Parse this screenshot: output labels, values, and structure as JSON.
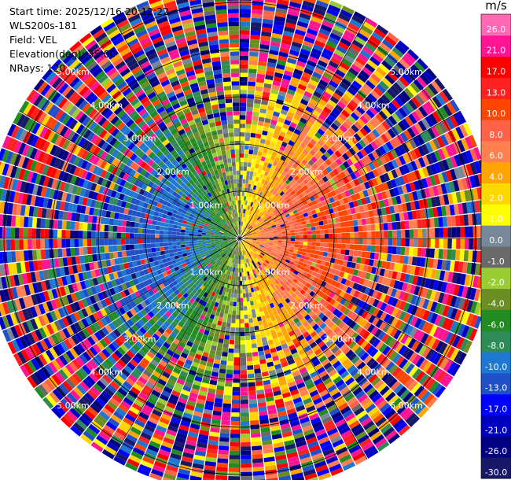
{
  "info": {
    "start_time": "Start time: 2025/12/16 20:12:22",
    "instrument": "WLS200s-181",
    "field": "Field: VEL",
    "elevation": "Elevation(deg): 35.00",
    "nrays": "NRays: 120"
  },
  "chart_data": {
    "type": "heatmap",
    "projection": "polar-ppi",
    "field": "VEL",
    "unit": "m/s",
    "n_rays": 120,
    "elevation_deg": 35.0,
    "range_km_max": 5.4,
    "range_rings_km": [
      1,
      2,
      3,
      4,
      5
    ],
    "range_ring_labels": [
      "1.00km",
      "2.00km",
      "3.00km",
      "4.00km",
      "5.00km"
    ],
    "colorbar": {
      "bounds": [
        -30.0,
        -26.0,
        -21.0,
        -17.0,
        -13.0,
        -10.0,
        -8.0,
        -6.0,
        -4.0,
        -2.0,
        -1.0,
        0.0,
        1.0,
        2.0,
        4.0,
        6.0,
        8.0,
        10.0,
        13.0,
        17.0,
        21.0,
        26.0
      ],
      "tick_labels": [
        "-30.0",
        "-26.0",
        "-21.0",
        "-17.0",
        "-13.0",
        "-10.0",
        "-8.0",
        "-6.0",
        "-4.0",
        "-2.0",
        "-1.0",
        "0.0",
        "1.0",
        "2.0",
        "4.0",
        "6.0",
        "8.0",
        "10.0",
        "13.0",
        "17.0",
        "21.0",
        "26.0"
      ],
      "colors": [
        "#181868",
        "#000080",
        "#0000c0",
        "#0000ff",
        "#2050c8",
        "#1e78d2",
        "#2e8b57",
        "#228b22",
        "#6b8e23",
        "#9acd32",
        "#696969",
        "#778899",
        "#ffff00",
        "#ffd700",
        "#ffa500",
        "#ff7f50",
        "#ff6347",
        "#ff4500",
        "#ff2020",
        "#ff0000",
        "#ff1493",
        "#ff69b4"
      ]
    },
    "pattern": "Near-field radial velocity shows a dipole: negative (blue, approx -13 to -8 m/s) toward the west, positive (orange/red, approx 8 to 13 m/s) toward the east, with a zero-velocity band running roughly north-south. Beyond about 2.5 km the field is noisy with values spanning the full -30 to 26 m/s range."
  }
}
